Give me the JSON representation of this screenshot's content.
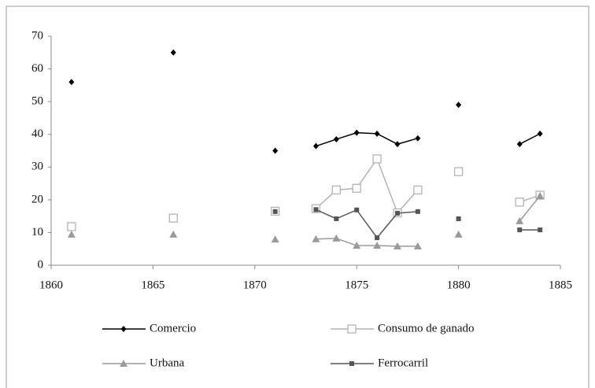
{
  "chart_data": {
    "type": "line",
    "x": [
      1861,
      1862,
      1863,
      1864,
      1865,
      1866,
      1867,
      1868,
      1869,
      1870,
      1871,
      1872,
      1873,
      1874,
      1875,
      1876,
      1877,
      1878,
      1879,
      1880,
      1881,
      1882,
      1883,
      1884
    ],
    "series": [
      {
        "name": "Comercio",
        "color": "#000000",
        "marker": "diamond",
        "values": [
          56,
          null,
          null,
          null,
          null,
          65,
          null,
          null,
          null,
          null,
          35,
          null,
          36.4,
          38.5,
          40.5,
          40.2,
          37,
          38.8,
          null,
          49,
          null,
          null,
          37,
          40.2
        ]
      },
      {
        "name": "Consumo de ganado",
        "color": "#b4b4b4",
        "marker": "open-square",
        "values": [
          11.8,
          null,
          null,
          null,
          null,
          14.4,
          null,
          null,
          null,
          null,
          16.5,
          null,
          17.3,
          23,
          23.5,
          32.5,
          16,
          23,
          null,
          28.6,
          null,
          null,
          19.3,
          21.4
        ]
      },
      {
        "name": "Urbana",
        "color": "#9a9a9a",
        "marker": "triangle",
        "values": [
          9.4,
          null,
          null,
          null,
          null,
          9.4,
          null,
          null,
          null,
          null,
          7.9,
          null,
          8,
          8.2,
          6,
          6,
          5.8,
          5.8,
          null,
          9.4,
          null,
          null,
          13.5,
          21.2
        ]
      },
      {
        "name": "Ferrocarril",
        "color": "#555555",
        "marker": "square",
        "values": [
          null,
          null,
          null,
          null,
          null,
          null,
          null,
          null,
          null,
          null,
          16.4,
          null,
          17,
          14.2,
          16.9,
          8.4,
          15.9,
          16.4,
          null,
          14.2,
          null,
          null,
          10.8,
          10.8
        ]
      }
    ],
    "xlim": [
      1860,
      1885
    ],
    "xticks": [
      1860,
      1865,
      1870,
      1875,
      1880,
      1885
    ],
    "ylim": [
      0,
      70
    ],
    "yticks": [
      0,
      10,
      20,
      30,
      40,
      50,
      60,
      70
    ],
    "grid": false,
    "legend": "bottom"
  }
}
